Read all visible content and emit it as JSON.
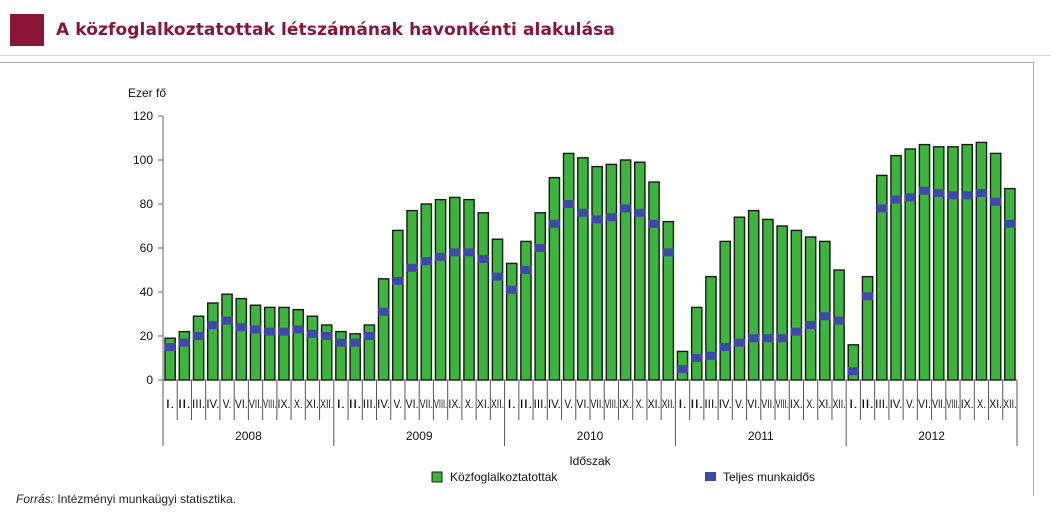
{
  "title": "A közfoglalkoztatottak létszámának havonkénti alakulása",
  "source": {
    "label": "Forrás:",
    "text": "Intézményi munkaügyi statisztika."
  },
  "colors": {
    "title": "#8a1538",
    "bar_fill": "#3bb53b",
    "bar_stroke": "#1a1a1a",
    "marker": "#3d4aa8"
  },
  "chart_data": {
    "type": "bar",
    "ylabel": "Ezer fő",
    "xlabel": "Időszak",
    "ylim": [
      0,
      120
    ],
    "yticks": [
      0,
      20,
      40,
      60,
      80,
      100,
      120
    ],
    "grid": false,
    "legend_position": "bottom",
    "years": [
      "2008",
      "2009",
      "2010",
      "2011",
      "2012"
    ],
    "months": [
      "I.",
      "II.",
      "III.",
      "IV.",
      "V.",
      "VI.",
      "VII.",
      "VIII.",
      "IX.",
      "X.",
      "XI.",
      "XII."
    ],
    "series": [
      {
        "name": "Közfoglalkoztatottak",
        "kind": "bar",
        "values": [
          19,
          22,
          29,
          35,
          39,
          37,
          34,
          33,
          33,
          32,
          29,
          25,
          22,
          21,
          25,
          46,
          68,
          77,
          80,
          82,
          83,
          82,
          76,
          64,
          53,
          63,
          76,
          92,
          103,
          101,
          97,
          98,
          100,
          99,
          90,
          72,
          13,
          33,
          47,
          63,
          74,
          77,
          73,
          70,
          68,
          65,
          63,
          50,
          16,
          47,
          93,
          102,
          105,
          107,
          106,
          106,
          107,
          108,
          103,
          87
        ]
      },
      {
        "name": "Teljes munkaidős",
        "kind": "marker",
        "values": [
          15,
          17,
          20,
          25,
          27,
          24,
          23,
          22,
          22,
          23,
          21,
          20,
          17,
          17,
          20,
          31,
          45,
          51,
          54,
          56,
          58,
          58,
          55,
          47,
          41,
          50,
          60,
          71,
          80,
          76,
          73,
          74,
          78,
          76,
          71,
          58,
          5,
          10,
          11,
          15,
          17,
          19,
          19,
          19,
          22,
          25,
          29,
          27,
          4,
          38,
          78,
          82,
          83,
          86,
          85,
          84,
          84,
          85,
          81,
          71
        ]
      }
    ]
  }
}
